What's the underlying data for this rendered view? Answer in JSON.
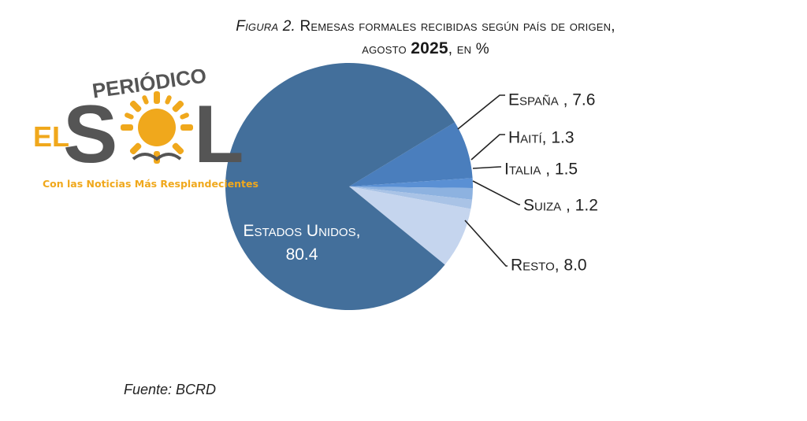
{
  "header": {
    "figure_label": "Figura 2.",
    "title_line1": "Remesas formales recibidas según país de origen,",
    "title_line2_a": "agosto ",
    "title_line2_b": "2025",
    "title_line2_c": ", en %"
  },
  "logo": {
    "top_word": "PERIÓDICO",
    "el": "EL",
    "sol_s": "S",
    "sol_l": "L",
    "tagline": "Con las Noticias Más Resplandecientes"
  },
  "source": {
    "text": "Fuente: BCRD"
  },
  "chart_data": {
    "type": "pie",
    "title": "Figura 2. Remesas formales recibidas según país de origen, agosto 2025, en %",
    "slices": [
      {
        "name": "España",
        "value": 7.6,
        "label": "España , 7.6",
        "color": "#4a7ebd"
      },
      {
        "name": "Haití",
        "value": 1.3,
        "label": "Haití, 1.3",
        "color": "#5a90d4"
      },
      {
        "name": "Italia",
        "value": 1.5,
        "label": "Italia , 1.5",
        "color": "#8db2e0"
      },
      {
        "name": "Suiza",
        "value": 1.2,
        "label": "Suiza , 1.2",
        "color": "#a9c3e6"
      },
      {
        "name": "Resto",
        "value": 8.0,
        "label": "Resto, 8.0",
        "color": "#c5d5ee"
      },
      {
        "name": "Estados Unidos",
        "value": 80.4,
        "label_line1": "Estados Unidos,",
        "label_line2": "80.4",
        "color": "#436f9b"
      }
    ]
  }
}
